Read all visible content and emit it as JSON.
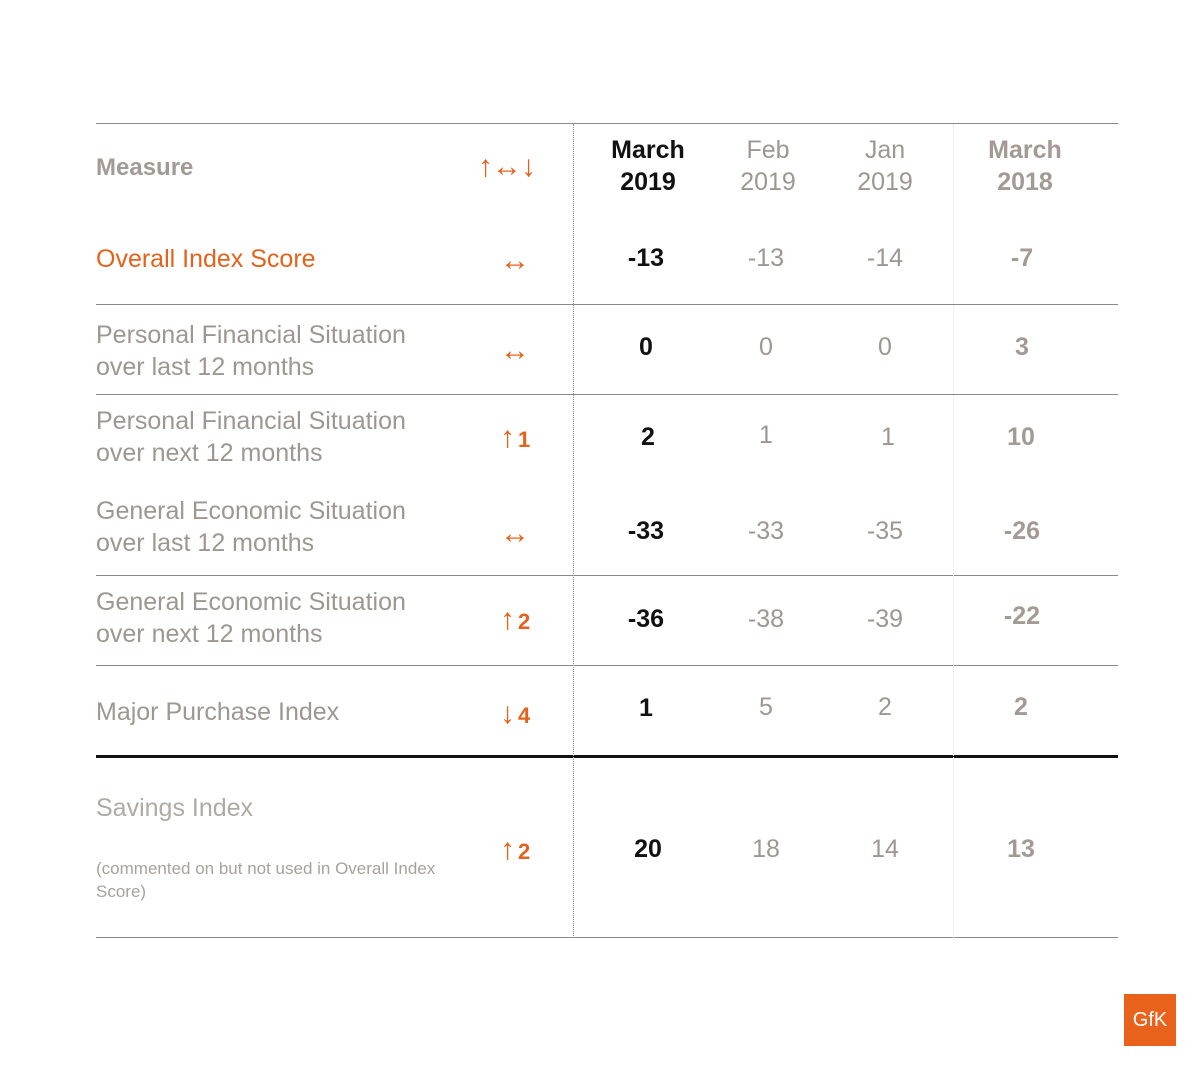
{
  "header": {
    "measure": "Measure",
    "trend_symbol": "↑↔↓",
    "columns": [
      {
        "line1": "March",
        "line2": "2019"
      },
      {
        "line1": "Feb",
        "line2": "2019"
      },
      {
        "line1": "Jan",
        "line2": "2019"
      },
      {
        "line1": "March",
        "line2": "2018"
      }
    ]
  },
  "rows": [
    {
      "label": [
        "Overall Index Score"
      ],
      "trend": {
        "symbol": "↔",
        "change": ""
      },
      "values": [
        "-13",
        "-13",
        "-14",
        "-7"
      ]
    },
    {
      "label": [
        "Personal Financial Situation",
        "over last 12 months"
      ],
      "trend": {
        "symbol": "↔",
        "change": ""
      },
      "values": [
        "0",
        "0",
        "0",
        "3"
      ]
    },
    {
      "label": [
        "Personal Financial Situation",
        "over next 12 months"
      ],
      "trend": {
        "symbol": "↑",
        "change": "1"
      },
      "values": [
        "2",
        "1",
        "1",
        "10"
      ]
    },
    {
      "label": [
        "General Economic Situation",
        "over last 12 months"
      ],
      "trend": {
        "symbol": "↔",
        "change": ""
      },
      "values": [
        "-33",
        "-33",
        "-35",
        "-26"
      ]
    },
    {
      "label": [
        "General Economic Situation",
        "over next 12 months"
      ],
      "trend": {
        "symbol": "↑",
        "change": "2"
      },
      "values": [
        "-36",
        "-38",
        "-39",
        "-22"
      ]
    },
    {
      "label": [
        "Major Purchase Index"
      ],
      "trend": {
        "symbol": "↓",
        "change": "4"
      },
      "values": [
        "1",
        "5",
        "2",
        "2"
      ]
    },
    {
      "label": [
        "Savings Index"
      ],
      "note": "(commented on but not used in Overall Index Score)",
      "trend": {
        "symbol": "↑",
        "change": "2"
      },
      "values": [
        "20",
        "18",
        "14",
        "13"
      ]
    }
  ],
  "logo": {
    "text": "GfK",
    "color": "#e8621c"
  },
  "colors": {
    "accent": "#e4621c",
    "muted": "#9e9791",
    "dark": "#111111"
  }
}
